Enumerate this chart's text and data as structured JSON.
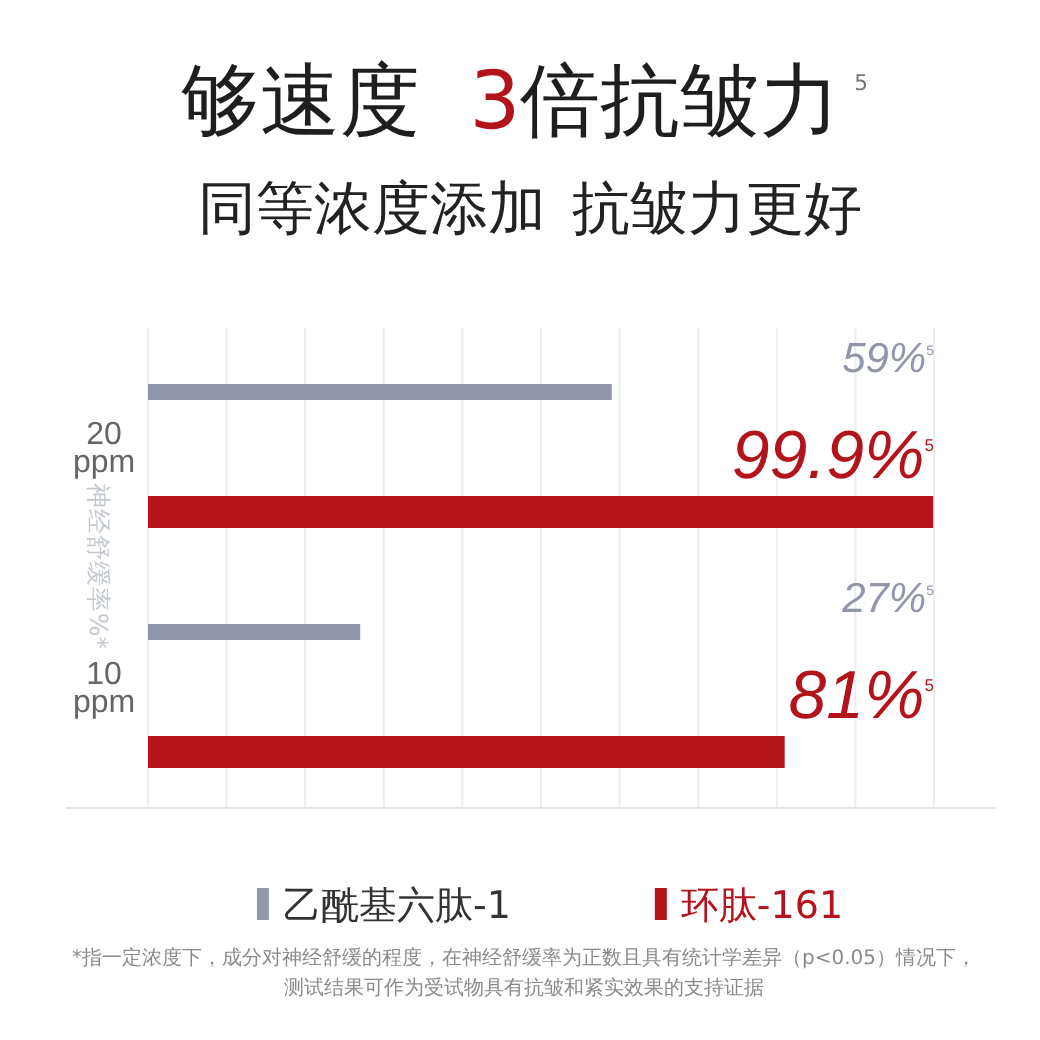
{
  "chart_data": {
    "type": "bar",
    "orientation": "horizontal",
    "title": "够速度 3倍抗皱力$^{5}$",
    "subtitle": "同等浓度添加 抗皱力更好",
    "ylabel": "神经舒缓率%*",
    "categories": [
      "20 ppm",
      "10 ppm"
    ],
    "series": [
      {
        "name": "乙酰基六肽-1",
        "color": "#9196aa",
        "values": [
          59,
          27
        ],
        "value_labels": [
          "59%$^{5}$",
          "27%$^{5}$"
        ]
      },
      {
        "name": "环肽-161",
        "color": "#b3141c",
        "values": [
          99.9,
          81
        ],
        "value_labels": [
          "99.9%$^{5}$",
          "81%$^{5}$"
        ]
      }
    ],
    "xlim": [
      0,
      100
    ],
    "xticks": [
      {
        "value": 0,
        "label": null
      },
      {
        "value": 10,
        "label": null
      },
      {
        "value": 20,
        "label": null
      },
      {
        "value": 30,
        "label": null
      },
      {
        "value": 40,
        "label": null
      },
      {
        "value": 50,
        "label": null
      },
      {
        "value": 60,
        "label": null
      },
      {
        "value": 70,
        "label": null
      },
      {
        "value": 80,
        "label": null
      },
      {
        "value": 90,
        "label": null
      },
      {
        "value": 100,
        "label": null
      }
    ],
    "grid": "x",
    "tick_labels": "y",
    "legend": "bottom",
    "annotations": [
      "*指一定浓度下，成分对神经舒缓的程度，在神经舒缓率为正数且具有统计学差异（p<0.05）情况下，",
      "测试结果可作为受试物具有抗皱和紧实效果的支持证据"
    ]
  }
}
